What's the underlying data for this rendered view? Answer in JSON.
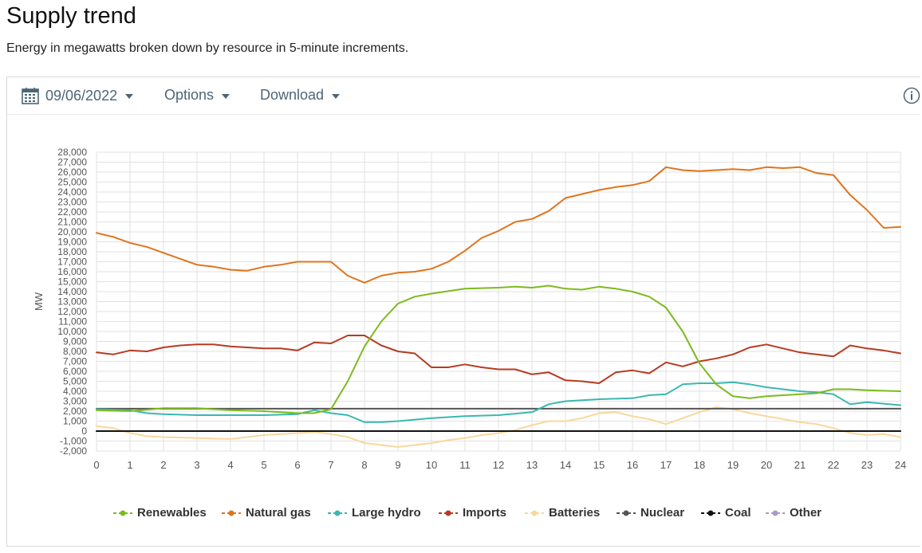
{
  "page": {
    "title": "Supply trend",
    "subtitle": "Energy in megawatts broken down by resource in 5-minute increments."
  },
  "toolbar": {
    "date_label": "09/06/2022",
    "options_label": "Options",
    "download_label": "Download"
  },
  "colors": {
    "Renewables": "#7dba1e",
    "Natural gas": "#e0741c",
    "Large hydro": "#3ab8b0",
    "Imports": "#b63b22",
    "Batteries": "#f9d79c",
    "Nuclear": "#555555",
    "Coal": "#111111",
    "Other": "#a99bc8"
  },
  "chart_data": {
    "type": "line",
    "title": "",
    "xlabel": "",
    "ylabel": "MW",
    "xlim": [
      0,
      24
    ],
    "ylim": [
      -2000,
      28000
    ],
    "x_ticks": [
      "0",
      "1",
      "2",
      "3",
      "4",
      "5",
      "6",
      "7",
      "8",
      "9",
      "10",
      "11",
      "12",
      "13",
      "14",
      "15",
      "16",
      "17",
      "18",
      "19",
      "20",
      "21",
      "22",
      "23",
      "24"
    ],
    "y_ticks": [
      "28,000",
      "27,000",
      "26,000",
      "25,000",
      "24,000",
      "23,000",
      "22,000",
      "21,000",
      "20,000",
      "19,000",
      "18,000",
      "17,000",
      "16,000",
      "15,000",
      "14,000",
      "13,000",
      "12,000",
      "11,000",
      "10,000",
      "9,000",
      "8,000",
      "7,000",
      "6,000",
      "5,000",
      "4,000",
      "3,000",
      "2,000",
      "1,000",
      "0",
      "-1,000",
      "-2,000"
    ],
    "grid": true,
    "legend_position": "bottom",
    "series": [
      {
        "name": "Renewables",
        "x": [
          0,
          1,
          2,
          3,
          4,
          5,
          6,
          6.5,
          7,
          7.5,
          8,
          8.5,
          9,
          9.5,
          10,
          11,
          12,
          12.5,
          13,
          13.5,
          14,
          14.5,
          15,
          15.5,
          16,
          16.5,
          17,
          17.5,
          18,
          18.5,
          19,
          19.5,
          20,
          21,
          21.5,
          22,
          22.5,
          23,
          24
        ],
        "y": [
          2100,
          2000,
          2300,
          2300,
          2100,
          2000,
          1800,
          1800,
          2200,
          5000,
          8500,
          11000,
          12800,
          13500,
          13800,
          14300,
          14400,
          14500,
          14400,
          14600,
          14300,
          14200,
          14500,
          14300,
          14000,
          13500,
          12400,
          10000,
          6800,
          4700,
          3500,
          3300,
          3500,
          3700,
          3800,
          4200,
          4200,
          4100,
          4000
        ]
      },
      {
        "name": "Natural gas",
        "x": [
          0,
          0.5,
          1,
          1.5,
          2,
          2.5,
          3,
          3.5,
          4,
          4.5,
          5,
          5.5,
          6,
          6.5,
          7,
          7.5,
          8,
          8.5,
          9,
          9.5,
          10,
          10.5,
          11,
          11.5,
          12,
          12.5,
          13,
          13.5,
          14,
          14.5,
          15,
          15.5,
          16,
          16.5,
          17,
          17.5,
          18,
          18.5,
          19,
          19.5,
          20,
          20.5,
          21,
          21.5,
          22,
          22.5,
          23,
          23.5,
          24
        ],
        "y": [
          19900,
          19500,
          18900,
          18500,
          17900,
          17300,
          16700,
          16500,
          16200,
          16100,
          16500,
          16700,
          17000,
          17000,
          17000,
          15600,
          14900,
          15600,
          15900,
          16000,
          16300,
          17000,
          18100,
          19400,
          20100,
          21000,
          21300,
          22100,
          23400,
          23800,
          24200,
          24500,
          24700,
          25100,
          26500,
          26200,
          26100,
          26200,
          26300,
          26200,
          26500,
          26400,
          26500,
          25900,
          25700,
          23700,
          22200,
          20400,
          20500
        ]
      },
      {
        "name": "Large hydro",
        "x": [
          0,
          1,
          1.5,
          2,
          3,
          4,
          5,
          6,
          6.5,
          7,
          7.5,
          8,
          8.5,
          9,
          10,
          11,
          12,
          13,
          13.5,
          14,
          14.5,
          15,
          16,
          16.5,
          17,
          17.5,
          18,
          18.5,
          19,
          19.5,
          20,
          21,
          21.5,
          22,
          22.5,
          23,
          24
        ],
        "y": [
          2200,
          2100,
          1800,
          1700,
          1600,
          1600,
          1600,
          1700,
          2100,
          1800,
          1600,
          900,
          900,
          1000,
          1300,
          1500,
          1600,
          1900,
          2700,
          3000,
          3100,
          3200,
          3300,
          3600,
          3700,
          4700,
          4800,
          4800,
          4900,
          4700,
          4400,
          4000,
          3900,
          3700,
          2700,
          2900,
          2600
        ]
      },
      {
        "name": "Imports",
        "x": [
          0,
          0.5,
          1,
          1.5,
          2,
          2.5,
          3,
          3.5,
          4,
          4.5,
          5,
          5.5,
          6,
          6.5,
          7,
          7.5,
          8,
          8.5,
          9,
          9.5,
          10,
          10.5,
          11,
          11.5,
          12,
          12.5,
          13,
          13.5,
          14,
          14.5,
          15,
          15.5,
          16,
          16.5,
          17,
          17.5,
          18,
          18.5,
          19,
          19.5,
          20,
          20.5,
          21,
          21.5,
          22,
          22.5,
          23,
          23.5,
          24
        ],
        "y": [
          7900,
          7700,
          8100,
          8000,
          8400,
          8600,
          8700,
          8700,
          8500,
          8400,
          8300,
          8300,
          8100,
          8900,
          8800,
          9600,
          9600,
          8600,
          8000,
          7800,
          6400,
          6400,
          6700,
          6400,
          6200,
          6200,
          5700,
          5900,
          5100,
          5000,
          4800,
          5900,
          6100,
          5800,
          6900,
          6500,
          7000,
          7300,
          7700,
          8400,
          8700,
          8300,
          7900,
          7700,
          7500,
          8600,
          8300,
          8100,
          7800
        ]
      },
      {
        "name": "Batteries",
        "x": [
          0,
          0.5,
          1,
          1.5,
          2,
          3,
          4,
          5,
          6,
          6.5,
          7,
          7.5,
          8,
          8.5,
          9,
          9.5,
          10,
          10.5,
          11,
          11.5,
          12,
          12.5,
          13,
          13.5,
          14,
          14.5,
          15,
          15.5,
          16,
          16.5,
          17,
          17.5,
          18,
          18.5,
          19,
          19.5,
          20,
          20.5,
          21,
          21.5,
          22,
          22.5,
          23,
          23.5,
          24
        ],
        "y": [
          500,
          300,
          -200,
          -500,
          -600,
          -700,
          -800,
          -400,
          -200,
          -100,
          -300,
          -600,
          -1200,
          -1400,
          -1600,
          -1400,
          -1200,
          -900,
          -700,
          -400,
          -200,
          100,
          600,
          1000,
          1000,
          1300,
          1800,
          1900,
          1500,
          1200,
          700,
          1300,
          1900,
          2400,
          2200,
          1800,
          1500,
          1200,
          900,
          700,
          300,
          -200,
          -400,
          -300,
          -600
        ]
      },
      {
        "name": "Nuclear",
        "x": [
          0,
          4,
          8,
          12,
          16,
          20,
          24
        ],
        "y": [
          2250,
          2250,
          2250,
          2250,
          2250,
          2250,
          2250
        ]
      },
      {
        "name": "Coal",
        "x": [
          0,
          24
        ],
        "y": [
          0,
          0
        ]
      },
      {
        "name": "Other",
        "x": [
          0,
          24
        ],
        "y": [
          0,
          0
        ]
      }
    ]
  }
}
